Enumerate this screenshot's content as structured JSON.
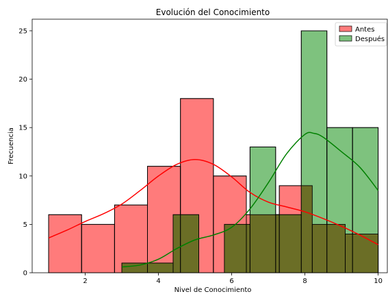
{
  "chart_data": {
    "type": "histogram",
    "title": "Evolución del Conocimiento",
    "xlabel": "Nivel de Conocimiento",
    "ylabel": "Frecuencia",
    "xlim": [
      0.55,
      10.25
    ],
    "ylim": [
      0,
      26.2
    ],
    "xticks": [
      2,
      4,
      6,
      8,
      10
    ],
    "yticks": [
      0,
      5,
      10,
      15,
      20,
      25
    ],
    "grid": false,
    "legend_position": "top-right",
    "overlap_color": "#6b6e26",
    "series": [
      {
        "name": "Antes",
        "color": "#ff7b7b",
        "kde_color": "#ff0000",
        "bins": [
          {
            "x0": 1.0,
            "x1": 1.9,
            "count": 6
          },
          {
            "x0": 1.9,
            "x1": 2.8,
            "count": 5
          },
          {
            "x0": 2.8,
            "x1": 3.7,
            "count": 7
          },
          {
            "x0": 3.7,
            "x1": 4.6,
            "count": 11
          },
          {
            "x0": 4.6,
            "x1": 5.5,
            "count": 18
          },
          {
            "x0": 5.5,
            "x1": 6.4,
            "count": 10
          },
          {
            "x0": 6.4,
            "x1": 7.3,
            "count": 6
          },
          {
            "x0": 7.3,
            "x1": 8.2,
            "count": 9
          },
          {
            "x0": 8.2,
            "x1": 9.1,
            "count": 5
          },
          {
            "x0": 9.1,
            "x1": 10.0,
            "count": 4
          }
        ],
        "kde": [
          [
            1.0,
            3.6
          ],
          [
            1.5,
            4.4
          ],
          [
            2.0,
            5.3
          ],
          [
            2.5,
            6.1
          ],
          [
            3.0,
            7.1
          ],
          [
            3.5,
            8.5
          ],
          [
            4.0,
            10.0
          ],
          [
            4.5,
            11.2
          ],
          [
            5.0,
            11.7
          ],
          [
            5.5,
            11.2
          ],
          [
            6.0,
            9.9
          ],
          [
            6.5,
            8.3
          ],
          [
            7.0,
            7.3
          ],
          [
            7.5,
            6.8
          ],
          [
            8.0,
            6.3
          ],
          [
            8.5,
            5.6
          ],
          [
            9.0,
            4.8
          ],
          [
            9.5,
            3.9
          ],
          [
            10.0,
            2.9
          ]
        ]
      },
      {
        "name": "Después",
        "color": "#7ec27e",
        "kde_color": "#008000",
        "bins": [
          {
            "x0": 3.0,
            "x1": 3.7,
            "count": 1
          },
          {
            "x0": 3.7,
            "x1": 4.4,
            "count": 1
          },
          {
            "x0": 4.4,
            "x1": 5.1,
            "count": 6
          },
          {
            "x0": 5.1,
            "x1": 5.8,
            "count": 0
          },
          {
            "x0": 5.8,
            "x1": 6.5,
            "count": 5
          },
          {
            "x0": 6.5,
            "x1": 7.2,
            "count": 13
          },
          {
            "x0": 7.2,
            "x1": 7.9,
            "count": 6
          },
          {
            "x0": 7.9,
            "x1": 8.6,
            "count": 25
          },
          {
            "x0": 8.6,
            "x1": 9.3,
            "count": 15
          },
          {
            "x0": 9.3,
            "x1": 10.0,
            "count": 15
          }
        ],
        "kde": [
          [
            3.0,
            0.6
          ],
          [
            3.5,
            0.8
          ],
          [
            4.0,
            1.4
          ],
          [
            4.5,
            2.5
          ],
          [
            5.0,
            3.4
          ],
          [
            5.5,
            3.9
          ],
          [
            6.0,
            4.7
          ],
          [
            6.5,
            6.6
          ],
          [
            7.0,
            9.3
          ],
          [
            7.5,
            12.3
          ],
          [
            8.0,
            14.3
          ],
          [
            8.25,
            14.4
          ],
          [
            8.5,
            14.0
          ],
          [
            9.0,
            12.5
          ],
          [
            9.5,
            10.9
          ],
          [
            10.0,
            8.5
          ]
        ]
      }
    ]
  }
}
